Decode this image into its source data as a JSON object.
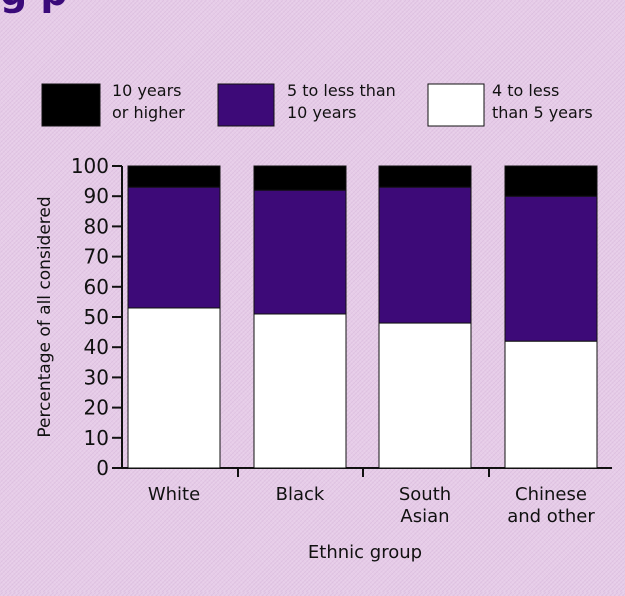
{
  "title_fragment": "g p",
  "colors": {
    "background": "#e6cce8",
    "ten_plus": "#000000",
    "five_to_ten": "#3d0a78",
    "four_to_five": "#ffffff"
  },
  "chart_data": {
    "type": "bar",
    "stacked": true,
    "categories": [
      "White",
      "Black",
      "South Asian",
      "Chinese and other"
    ],
    "category_label_lines": [
      [
        "White"
      ],
      [
        "Black"
      ],
      [
        "South",
        "Asian"
      ],
      [
        "Chinese",
        "and other"
      ]
    ],
    "series": [
      {
        "name": "4 to less than 5 years",
        "legend_lines": [
          "4 to less",
          "than 5 years"
        ],
        "color": "#ffffff",
        "values": [
          53,
          51,
          48,
          42
        ]
      },
      {
        "name": "5 to less than 10 years",
        "legend_lines": [
          "5 to less than",
          "10 years"
        ],
        "color": "#3d0a78",
        "values": [
          40,
          41,
          45,
          48
        ]
      },
      {
        "name": "10 years or higher",
        "legend_lines": [
          "10 years",
          "or higher"
        ],
        "color": "#000000",
        "values": [
          7,
          8,
          7,
          10
        ]
      }
    ],
    "legend_order": [
      2,
      1,
      0
    ],
    "ylabel": "Percentage of all considered",
    "xlabel": "Ethnic group",
    "ylim": [
      0,
      100
    ],
    "yticks": [
      0,
      10,
      20,
      30,
      40,
      50,
      60,
      70,
      80,
      90,
      100
    ],
    "grid": false,
    "legend_position": "top"
  }
}
